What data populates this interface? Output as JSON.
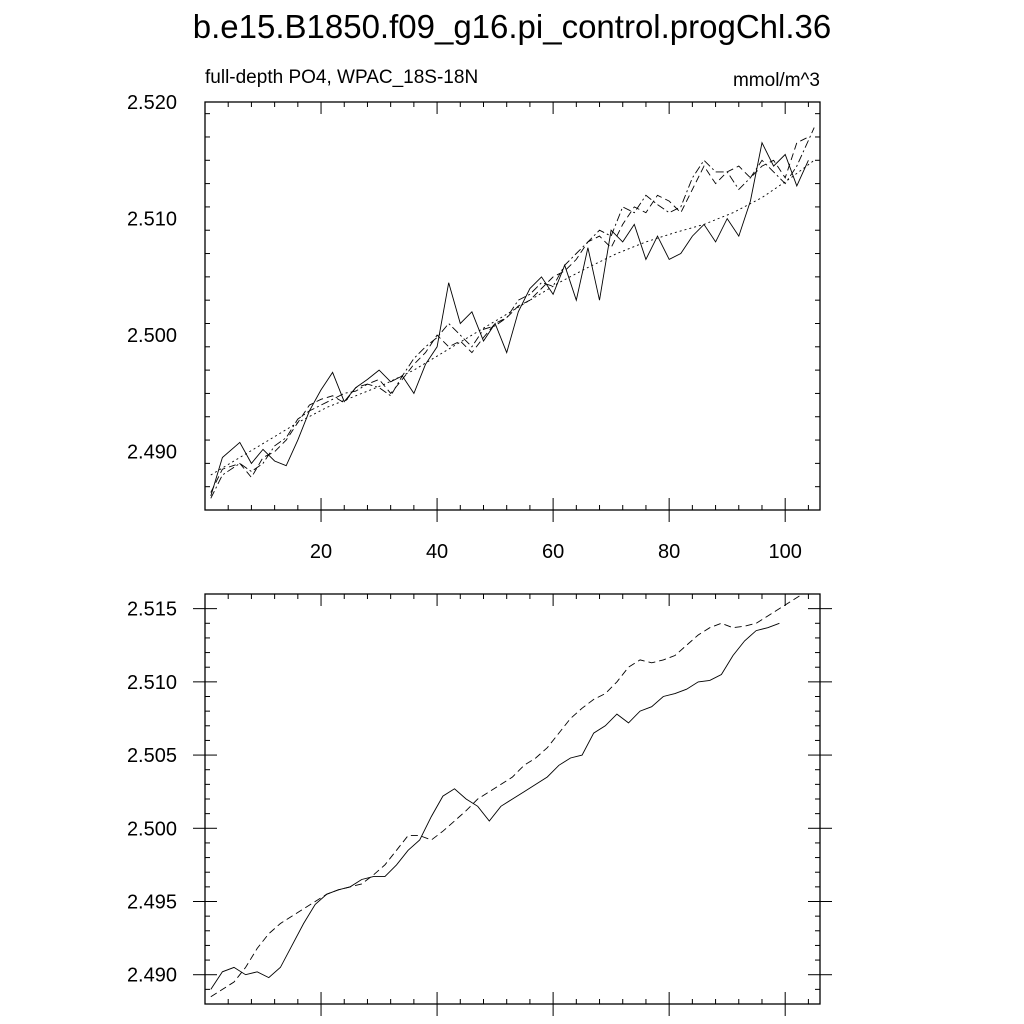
{
  "title": "b.e15.B1850.f09_g16.pi_control.progChl.36",
  "chart_data": [
    {
      "type": "line",
      "subtitle_left": "full-depth PO4, WPAC_18S-18N",
      "subtitle_right": "mmol/m^3",
      "xlim": [
        0,
        106
      ],
      "ylim": [
        2.485,
        2.52
      ],
      "xticks": [
        "20",
        "40",
        "60",
        "80",
        "100"
      ],
      "yticks": [
        "2.490",
        "2.500",
        "2.510",
        "2.520"
      ],
      "series": [
        {
          "line_style": "solid",
          "x": [
            1,
            3,
            6,
            8,
            10,
            12,
            14,
            16,
            18,
            20,
            22,
            24,
            26,
            28,
            30,
            32,
            34,
            36,
            38,
            40,
            42,
            44,
            46,
            48,
            50,
            52,
            54,
            56,
            58,
            60,
            62,
            64,
            66,
            68,
            70,
            72,
            74,
            76,
            78,
            80,
            82,
            84,
            86,
            88,
            90,
            92,
            94,
            96,
            98,
            100,
            102,
            104
          ],
          "y": [
            2.4862,
            2.4895,
            2.4908,
            2.489,
            2.4902,
            2.4892,
            2.4888,
            2.491,
            2.4935,
            2.4953,
            2.4968,
            2.4943,
            2.4955,
            2.4962,
            2.497,
            2.496,
            2.4965,
            2.495,
            2.4975,
            2.499,
            2.5045,
            2.501,
            2.502,
            2.4995,
            2.501,
            2.4985,
            2.502,
            2.504,
            2.505,
            2.5035,
            2.506,
            2.503,
            2.5075,
            2.503,
            2.509,
            2.508,
            2.5095,
            2.5065,
            2.5085,
            2.5065,
            2.507,
            2.5085,
            2.5095,
            2.508,
            2.51,
            2.5085,
            2.5115,
            2.5165,
            2.5145,
            2.5155,
            2.5128,
            2.515
          ]
        },
        {
          "line_style": "dash",
          "x": [
            1,
            3,
            6,
            8,
            10,
            12,
            14,
            16,
            18,
            20,
            22,
            24,
            26,
            28,
            30,
            32,
            34,
            36,
            38,
            40,
            42,
            44,
            46,
            48,
            50,
            52,
            54,
            56,
            58,
            60,
            62,
            64,
            66,
            68,
            70,
            72,
            74,
            76,
            78,
            80,
            82,
            84,
            86,
            88,
            90,
            92,
            94,
            96,
            98,
            100,
            102,
            104
          ],
          "y": [
            2.4865,
            2.4885,
            2.489,
            2.4878,
            2.4895,
            2.49,
            2.491,
            2.4925,
            2.494,
            2.4945,
            2.4948,
            2.4942,
            2.4955,
            2.4958,
            2.4962,
            2.495,
            2.4962,
            2.4975,
            2.4985,
            2.5,
            2.499,
            2.4995,
            2.4985,
            2.4998,
            2.501,
            2.5015,
            2.5025,
            2.503,
            2.504,
            2.505,
            2.5055,
            2.5065,
            2.508,
            2.5085,
            2.5075,
            2.5095,
            2.511,
            2.5105,
            2.512,
            2.5115,
            2.5105,
            2.5125,
            2.5145,
            2.513,
            2.514,
            2.5145,
            2.5135,
            2.5145,
            2.515,
            2.5135,
            2.5165,
            2.517
          ]
        },
        {
          "line_style": "dashdot",
          "x": [
            1,
            3,
            6,
            8,
            10,
            12,
            14,
            16,
            18,
            20,
            22,
            24,
            26,
            28,
            30,
            32,
            34,
            36,
            38,
            40,
            42,
            44,
            46,
            48,
            50,
            52,
            54,
            56,
            58,
            60,
            62,
            64,
            66,
            68,
            70,
            72,
            74,
            76,
            78,
            80,
            82,
            84,
            86,
            88,
            90,
            92,
            94,
            96,
            98,
            100,
            102,
            105
          ],
          "y": [
            2.486,
            2.488,
            2.489,
            2.4883,
            2.489,
            2.4905,
            2.4912,
            2.4928,
            2.4935,
            2.494,
            2.4945,
            2.495,
            2.4952,
            2.4958,
            2.4955,
            2.4948,
            2.4965,
            2.498,
            2.499,
            2.4998,
            2.501,
            2.5,
            2.499,
            2.5005,
            2.5008,
            2.5015,
            2.503,
            2.5035,
            2.5045,
            2.5042,
            2.506,
            2.507,
            2.508,
            2.509,
            2.5085,
            2.511,
            2.5105,
            2.512,
            2.5112,
            2.5105,
            2.511,
            2.5135,
            2.515,
            2.514,
            2.514,
            2.5125,
            2.5135,
            2.515,
            2.514,
            2.513,
            2.5145,
            2.5178
          ]
        },
        {
          "line_style": "dot",
          "x": [
            1,
            6,
            11,
            16,
            21,
            26,
            31,
            36,
            41,
            46,
            51,
            56,
            61,
            66,
            71,
            76,
            81,
            86,
            91,
            96,
            101,
            105
          ],
          "y": [
            2.488,
            2.4895,
            2.491,
            2.4925,
            2.4938,
            2.4948,
            2.4958,
            2.497,
            2.4985,
            2.5,
            2.5015,
            2.503,
            2.5045,
            2.5058,
            2.507,
            2.508,
            2.5088,
            2.5095,
            2.5105,
            2.5118,
            2.5135,
            2.515
          ]
        }
      ]
    },
    {
      "type": "line",
      "xlim": [
        0,
        106
      ],
      "ylim": [
        2.488,
        2.516
      ],
      "yticks": [
        "2.490",
        "2.495",
        "2.500",
        "2.505",
        "2.510",
        "2.515"
      ],
      "series": [
        {
          "line_style": "solid",
          "x": [
            1,
            3,
            5,
            7,
            9,
            11,
            13,
            15,
            17,
            19,
            21,
            23,
            25,
            27,
            29,
            31,
            33,
            35,
            37,
            39,
            41,
            43,
            45,
            47,
            49,
            51,
            53,
            55,
            57,
            59,
            61,
            63,
            65,
            67,
            69,
            71,
            73,
            75,
            77,
            79,
            81,
            83,
            85,
            87,
            89,
            91,
            93,
            95,
            97,
            99
          ],
          "y": [
            2.489,
            2.4902,
            2.4905,
            2.49,
            2.4902,
            2.4898,
            2.4905,
            2.492,
            2.4935,
            2.4948,
            2.4955,
            2.4958,
            2.496,
            2.4965,
            2.4967,
            2.4967,
            2.4975,
            2.4985,
            2.4992,
            2.5008,
            2.5022,
            2.5027,
            2.502,
            2.5015,
            2.5005,
            2.5015,
            2.502,
            2.5025,
            2.503,
            2.5035,
            2.5043,
            2.5048,
            2.505,
            2.5065,
            2.507,
            2.5078,
            2.5072,
            2.508,
            2.5083,
            2.509,
            2.5092,
            2.5095,
            2.51,
            2.5101,
            2.5105,
            2.5118,
            2.5128,
            2.5135,
            2.5137,
            2.514
          ]
        },
        {
          "line_style": "dash",
          "x": [
            1,
            3,
            5,
            7,
            9,
            11,
            13,
            15,
            17,
            19,
            21,
            23,
            25,
            27,
            29,
            31,
            33,
            35,
            37,
            39,
            41,
            43,
            45,
            47,
            49,
            51,
            53,
            55,
            57,
            59,
            61,
            63,
            65,
            67,
            69,
            71,
            73,
            75,
            77,
            79,
            81,
            83,
            85,
            87,
            89,
            91,
            93,
            95,
            97,
            99,
            101,
            103
          ],
          "y": [
            2.4885,
            2.489,
            2.4895,
            2.4905,
            2.4918,
            2.4928,
            2.4935,
            2.494,
            2.4945,
            2.495,
            2.4955,
            2.4958,
            2.496,
            2.4962,
            2.4968,
            2.4975,
            2.4985,
            2.4995,
            2.4995,
            2.4992,
            2.4998,
            2.5005,
            2.5012,
            2.502,
            2.5025,
            2.503,
            2.5035,
            2.5043,
            2.5048,
            2.5055,
            2.5065,
            2.5075,
            2.5082,
            2.5088,
            2.5092,
            2.51,
            2.511,
            2.5115,
            2.5113,
            2.5115,
            2.5118,
            2.5125,
            2.5132,
            2.5137,
            2.514,
            2.5137,
            2.5138,
            2.514,
            2.5145,
            2.515,
            2.5155,
            2.516
          ]
        }
      ]
    }
  ]
}
